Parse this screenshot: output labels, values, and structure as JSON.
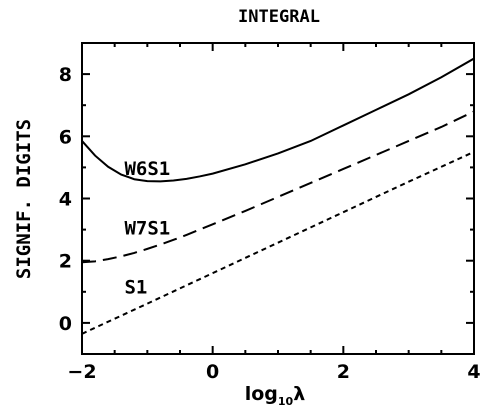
{
  "chart_data": {
    "type": "line",
    "title": "INTEGRAL",
    "xlabel": {
      "base": "log",
      "sub": "10",
      "symbol": "λ"
    },
    "ylabel": "SIGNIF. DIGITS",
    "xlim": [
      -2,
      4
    ],
    "ylim": [
      -1,
      9
    ],
    "xticks": [
      -2,
      0,
      2,
      4
    ],
    "yticks": [
      0,
      2,
      4,
      6,
      8
    ],
    "grid": false,
    "legend": "none",
    "series": [
      {
        "name": "W6S1",
        "style": "solid",
        "x": [
          -2.0,
          -1.8,
          -1.6,
          -1.4,
          -1.2,
          -1.0,
          -0.8,
          -0.6,
          -0.4,
          -0.2,
          0.0,
          0.5,
          1.0,
          1.5,
          2.0,
          2.5,
          3.0,
          3.5,
          4.0
        ],
        "y": [
          5.85,
          5.38,
          5.02,
          4.77,
          4.62,
          4.56,
          4.55,
          4.58,
          4.63,
          4.71,
          4.8,
          5.1,
          5.45,
          5.85,
          6.35,
          6.85,
          7.35,
          7.9,
          8.5
        ]
      },
      {
        "name": "W7S1",
        "style": "dashed",
        "x": [
          -2.0,
          -1.8,
          -1.6,
          -1.4,
          -1.2,
          -1.0,
          -0.8,
          -0.6,
          -0.4,
          -0.2,
          0.0,
          0.5,
          1.0,
          1.5,
          2.0,
          2.5,
          3.0,
          3.5,
          4.0
        ],
        "y": [
          1.95,
          1.98,
          2.05,
          2.14,
          2.25,
          2.38,
          2.52,
          2.67,
          2.83,
          3.0,
          3.17,
          3.6,
          4.05,
          4.5,
          4.95,
          5.4,
          5.85,
          6.3,
          6.8
        ]
      },
      {
        "name": "S1",
        "style": "dotted",
        "x": [
          -2.0,
          -1.0,
          0.0,
          1.0,
          2.0,
          3.0,
          4.0
        ],
        "y": [
          -0.35,
          0.62,
          1.6,
          2.58,
          3.56,
          4.54,
          5.5
        ]
      }
    ],
    "annotations": [
      {
        "text": "W6S1",
        "x": -1.35,
        "y": 4.75
      },
      {
        "text": "W7S1",
        "x": -1.35,
        "y": 2.85
      },
      {
        "text": "S1",
        "x": -1.35,
        "y": 0.95
      }
    ]
  }
}
